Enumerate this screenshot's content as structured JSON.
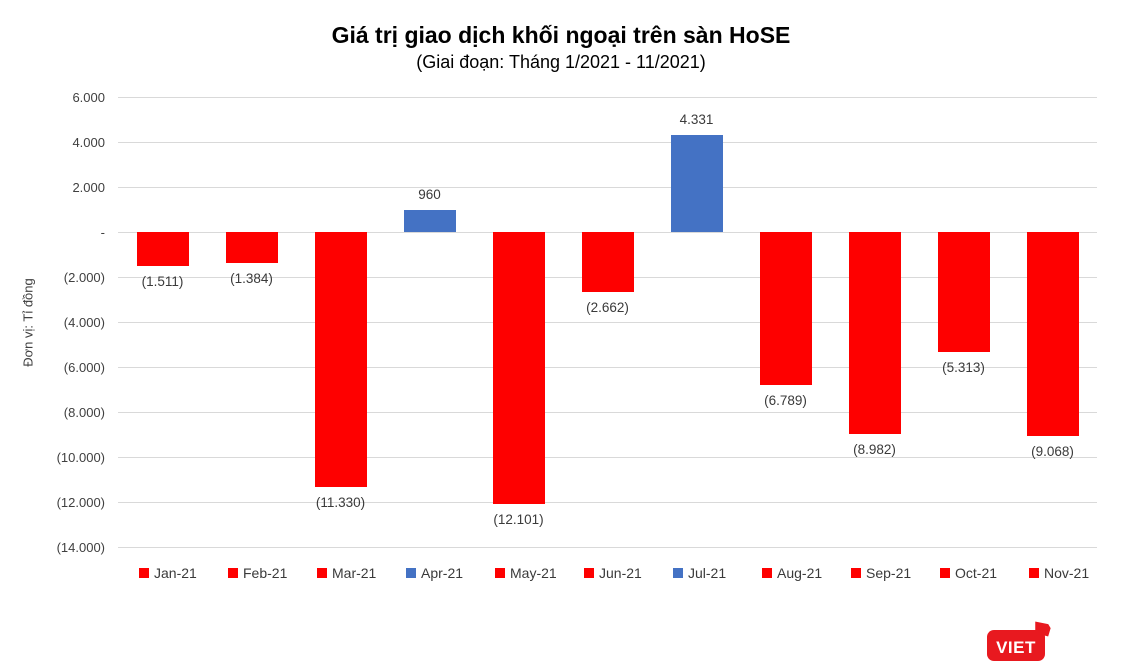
{
  "chart_data": {
    "type": "bar",
    "title": "Giá trị giao dịch khối ngoại trên sàn HoSE",
    "subtitle": "(Giai đoạn: Tháng 1/2021 - 11/2021)",
    "ylabel": "Đơn vị: Tỉ đồng",
    "xlabel": "",
    "categories": [
      "Jan-21",
      "Feb-21",
      "Mar-21",
      "Apr-21",
      "May-21",
      "Jun-21",
      "Jul-21",
      "Aug-21",
      "Sep-21",
      "Oct-21",
      "Nov-21"
    ],
    "values": [
      -1511,
      -1384,
      -11330,
      960,
      -12101,
      -2662,
      4331,
      -6789,
      -8982,
      -5313,
      -9068
    ],
    "value_labels": [
      "(1.511)",
      "(1.384)",
      "(11.330)",
      "960",
      "(12.101)",
      "(2.662)",
      "4.331",
      "(6.789)",
      "(8.982)",
      "(5.313)",
      "(9.068)"
    ],
    "ylim": [
      -14000,
      6000
    ],
    "ytick_step": 2000,
    "ytick_labels": [
      "6.000",
      "4.000",
      "2.000",
      "-",
      "(2.000)",
      "(4.000)",
      "(6.000)",
      "(8.000)",
      "(10.000)",
      "(12.000)",
      "(14.000)"
    ],
    "grid": true,
    "legend_position": "bottom"
  },
  "colors": {
    "negative_bar": "#fe0000",
    "positive_bar": "#4472c4",
    "gridline": "#d9d9d9",
    "axis_text": "#404040",
    "logo_red": "#e8191f"
  },
  "logo": {
    "text": "VIET"
  }
}
